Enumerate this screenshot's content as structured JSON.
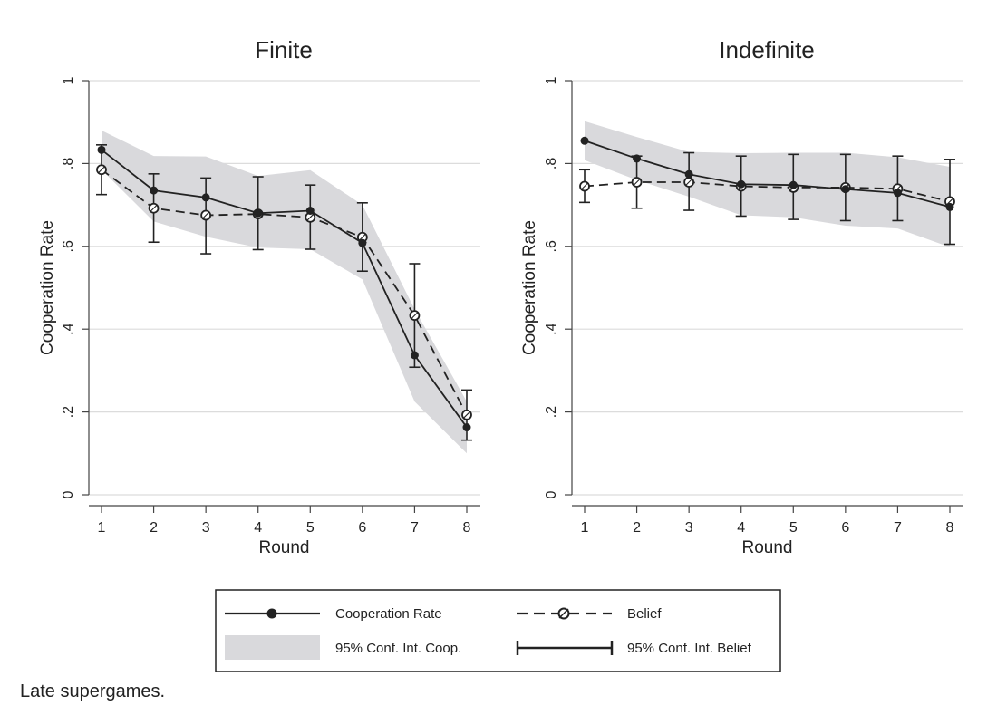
{
  "chart_data": [
    {
      "type": "line",
      "title": "Finite",
      "xlabel": "Round",
      "ylabel": "Cooperation Rate",
      "x": [
        1,
        2,
        3,
        4,
        5,
        6,
        7,
        8
      ],
      "xticks": [
        "1",
        "2",
        "3",
        "4",
        "5",
        "6",
        "7",
        "8"
      ],
      "ylim": [
        0,
        1
      ],
      "yticks": [
        "0",
        ".2",
        ".4",
        ".6",
        ".8",
        "1"
      ],
      "grid": true,
      "series": [
        {
          "name": "Cooperation Rate",
          "values": [
            0.833,
            0.735,
            0.718,
            0.68,
            0.686,
            0.608,
            0.337,
            0.163
          ]
        },
        {
          "name": "Belief",
          "values": [
            0.785,
            0.692,
            0.675,
            0.678,
            0.67,
            0.622,
            0.433,
            0.193
          ]
        }
      ],
      "coop_ci": {
        "lower": [
          0.785,
          0.66,
          0.623,
          0.597,
          0.593,
          0.52,
          0.225,
          0.1
        ],
        "upper": [
          0.88,
          0.818,
          0.817,
          0.77,
          0.784,
          0.7,
          0.448,
          0.225
        ]
      },
      "belief_ci": {
        "lower": [
          0.725,
          0.61,
          0.582,
          0.592,
          0.593,
          0.54,
          0.308,
          0.132
        ],
        "upper": [
          0.845,
          0.775,
          0.765,
          0.768,
          0.748,
          0.705,
          0.558,
          0.253
        ]
      }
    },
    {
      "type": "line",
      "title": "Indefinite",
      "xlabel": "Round",
      "ylabel": "Cooperation Rate",
      "x": [
        1,
        2,
        3,
        4,
        5,
        6,
        7,
        8
      ],
      "xticks": [
        "1",
        "2",
        "3",
        "4",
        "5",
        "6",
        "7",
        "8"
      ],
      "ylim": [
        0,
        1
      ],
      "yticks": [
        "0",
        ".2",
        ".4",
        ".6",
        ".8",
        "1"
      ],
      "grid": true,
      "series": [
        {
          "name": "Cooperation Rate",
          "values": [
            0.855,
            0.812,
            0.774,
            0.75,
            0.748,
            0.738,
            0.729,
            0.695
          ]
        },
        {
          "name": "Belief",
          "values": [
            0.745,
            0.755,
            0.755,
            0.745,
            0.742,
            0.742,
            0.739,
            0.708
          ]
        }
      ],
      "coop_ci": {
        "lower": [
          0.808,
          0.76,
          0.72,
          0.675,
          0.67,
          0.65,
          0.643,
          0.598
        ]
      },
      "belief_ci": {
        "lower": [
          0.706,
          0.692,
          0.687,
          0.673,
          0.665,
          0.662,
          0.662,
          0.605
        ],
        "upper": [
          0.785,
          0.818,
          0.826,
          0.818,
          0.822,
          0.822,
          0.818,
          0.81
        ]
      }
    }
  ],
  "legend": {
    "coop_rate": "Cooperation Rate",
    "belief": "Belief",
    "coop_ci": "95% Conf. Int. Coop.",
    "belief_ci": "95% Conf. Int. Belief"
  },
  "note": "Late supergames.",
  "colors": {
    "band": "#d9d9dc",
    "line": "#222222",
    "grid": "#dcdcdc",
    "axis": "#444444"
  }
}
